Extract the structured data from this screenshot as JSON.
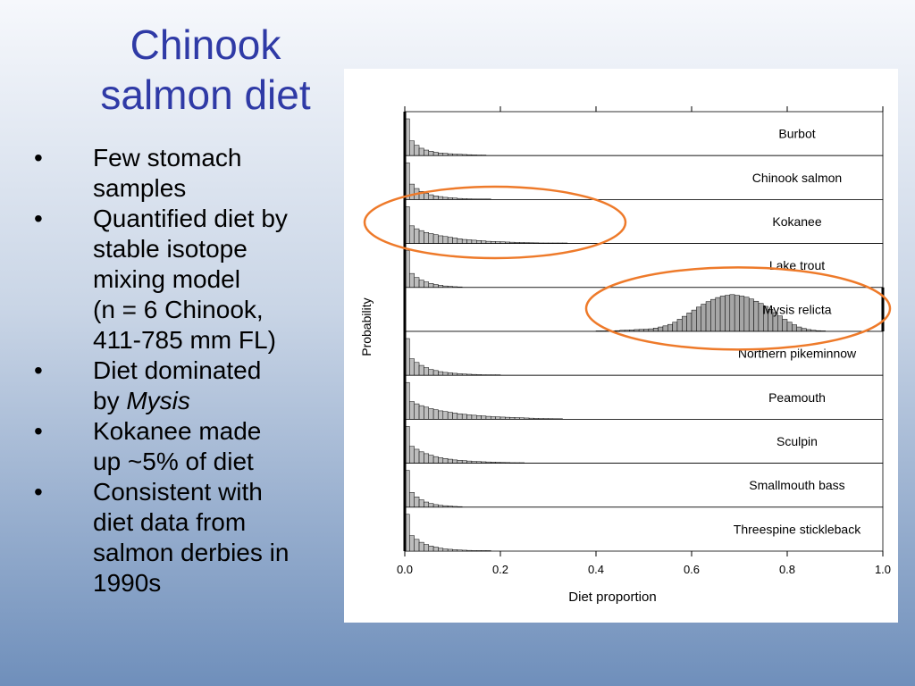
{
  "slide": {
    "title_line1": "Chinook",
    "title_line2": "salmon diet",
    "bullets": [
      {
        "lines": [
          "Few stomach",
          "samples"
        ]
      },
      {
        "lines": [
          "Quantified diet by",
          "stable isotope",
          "mixing model",
          "(n = 6 Chinook,",
          "411-785 mm FL)"
        ]
      },
      {
        "lines": [
          "Diet dominated"
        ],
        "prefix": "by ",
        "italic": "Mysis"
      },
      {
        "lines": [
          "Kokanee made",
          "up ~5% of diet"
        ]
      },
      {
        "lines": [
          "Consistent with",
          "diet data from",
          "salmon derbies in",
          "1990s"
        ]
      }
    ],
    "bullet_glyph": "•"
  },
  "chart_data": {
    "type": "bar",
    "subtype": "stacked-histograms",
    "xlabel": "Diet proportion",
    "ylabel": "Probability",
    "xlim": [
      0,
      1
    ],
    "x_ticks": [
      "0.0",
      "0.2",
      "0.4",
      "0.6",
      "0.8",
      "1.0"
    ],
    "bin_width": 0.01,
    "annotation_color": "#ee7a2a",
    "highlighted": [
      "Kokanee",
      "Mysis relicta"
    ],
    "panels": [
      {
        "name": "Burbot",
        "bin_start": 0.0,
        "values": [
          1.0,
          0.4,
          0.28,
          0.2,
          0.15,
          0.12,
          0.09,
          0.07,
          0.06,
          0.05,
          0.04,
          0.035,
          0.03,
          0.025,
          0.02,
          0.015,
          0.01
        ]
      },
      {
        "name": "Chinook salmon",
        "bin_start": 0.0,
        "values": [
          1.0,
          0.42,
          0.3,
          0.22,
          0.17,
          0.13,
          0.1,
          0.08,
          0.06,
          0.05,
          0.04,
          0.03,
          0.025,
          0.02,
          0.015,
          0.012,
          0.01,
          0.01
        ]
      },
      {
        "name": "Kokanee",
        "bin_start": 0.0,
        "values": [
          1.0,
          0.48,
          0.4,
          0.35,
          0.3,
          0.27,
          0.24,
          0.21,
          0.19,
          0.17,
          0.15,
          0.13,
          0.11,
          0.1,
          0.09,
          0.08,
          0.07,
          0.06,
          0.055,
          0.05,
          0.045,
          0.04,
          0.035,
          0.03,
          0.028,
          0.025,
          0.02,
          0.018,
          0.015,
          0.012,
          0.01,
          0.01,
          0.008,
          0.005
        ]
      },
      {
        "name": "Lake trout",
        "bin_start": 0.0,
        "values": [
          1.0,
          0.38,
          0.27,
          0.2,
          0.15,
          0.11,
          0.08,
          0.06,
          0.04,
          0.03,
          0.02,
          0.015
        ]
      },
      {
        "name": "Mysis relicta",
        "bin_start": 0.4,
        "bar_color": "#a6a6a6",
        "values": [
          0.005,
          0.008,
          0.01,
          0.015,
          0.02,
          0.03,
          0.035,
          0.04,
          0.05,
          0.055,
          0.06,
          0.07,
          0.09,
          0.12,
          0.15,
          0.19,
          0.25,
          0.33,
          0.41,
          0.5,
          0.58,
          0.66,
          0.74,
          0.81,
          0.87,
          0.92,
          0.96,
          0.98,
          1.0,
          0.98,
          0.96,
          0.93,
          0.88,
          0.82,
          0.76,
          0.68,
          0.6,
          0.51,
          0.42,
          0.33,
          0.25,
          0.18,
          0.12,
          0.08,
          0.05,
          0.03,
          0.02,
          0.01
        ]
      },
      {
        "name": "Northern pikeminnow",
        "bin_start": 0.0,
        "values": [
          1.0,
          0.45,
          0.35,
          0.27,
          0.21,
          0.16,
          0.13,
          0.1,
          0.08,
          0.07,
          0.055,
          0.045,
          0.035,
          0.03,
          0.025,
          0.02,
          0.015,
          0.01,
          0.01,
          0.01
        ]
      },
      {
        "name": "Peamouth",
        "bin_start": 0.0,
        "values": [
          1.0,
          0.48,
          0.42,
          0.37,
          0.33,
          0.29,
          0.26,
          0.23,
          0.21,
          0.19,
          0.17,
          0.15,
          0.135,
          0.12,
          0.11,
          0.1,
          0.09,
          0.08,
          0.07,
          0.065,
          0.06,
          0.055,
          0.05,
          0.045,
          0.04,
          0.035,
          0.03,
          0.025,
          0.022,
          0.02,
          0.018,
          0.015,
          0.012
        ]
      },
      {
        "name": "Sculpin",
        "bin_start": 0.0,
        "values": [
          1.0,
          0.46,
          0.38,
          0.31,
          0.26,
          0.22,
          0.18,
          0.15,
          0.13,
          0.11,
          0.09,
          0.08,
          0.07,
          0.06,
          0.05,
          0.045,
          0.04,
          0.035,
          0.03,
          0.025,
          0.02,
          0.018,
          0.015,
          0.012,
          0.01
        ]
      },
      {
        "name": "Smallmouth bass",
        "bin_start": 0.0,
        "values": [
          1.0,
          0.4,
          0.28,
          0.2,
          0.14,
          0.1,
          0.07,
          0.05,
          0.04,
          0.03,
          0.02,
          0.015
        ]
      },
      {
        "name": "Threespine stickleback",
        "bin_start": 0.0,
        "values": [
          1.0,
          0.42,
          0.32,
          0.24,
          0.18,
          0.14,
          0.11,
          0.08,
          0.06,
          0.05,
          0.04,
          0.03,
          0.025,
          0.02,
          0.015,
          0.01,
          0.01,
          0.008
        ]
      }
    ]
  }
}
